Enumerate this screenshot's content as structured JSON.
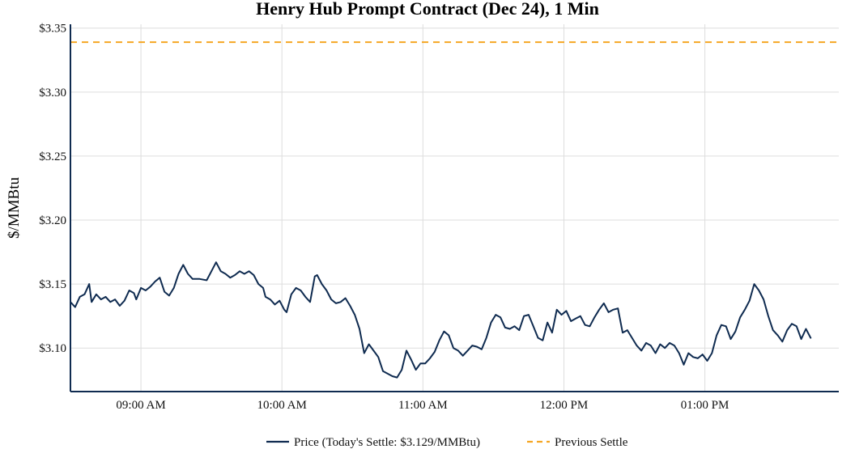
{
  "chart_data": {
    "type": "line",
    "title": "Henry Hub Prompt Contract (Dec 24), 1 Min",
    "xlabel": "",
    "ylabel": "$/MMBtu",
    "xlim": [
      "08:30",
      "13:57"
    ],
    "ylim": [
      3.066,
      3.353
    ],
    "x_ticks": [
      "09:00 AM",
      "10:00 AM",
      "11:00 AM",
      "12:00 PM",
      "01:00 PM"
    ],
    "x_tick_times": [
      "09:00",
      "10:00",
      "11:00",
      "12:00",
      "13:00"
    ],
    "y_ticks": [
      "$3.10",
      "$3.15",
      "$3.20",
      "$3.25",
      "$3.30",
      "$3.35"
    ],
    "y_tick_values": [
      3.1,
      3.15,
      3.2,
      3.25,
      3.3,
      3.35
    ],
    "grid": true,
    "legend_position": "bottom-center",
    "colors": {
      "price": "#0f2b50",
      "previous_settle": "#f5a623"
    },
    "series": [
      {
        "name": "Price (Today's Settle: $3.129/MMBtu)",
        "style": "solid",
        "points": [
          [
            "08:30",
            3.136
          ],
          [
            "08:32",
            3.132
          ],
          [
            "08:34",
            3.14
          ],
          [
            "08:36",
            3.142
          ],
          [
            "08:38",
            3.15
          ],
          [
            "08:39",
            3.136
          ],
          [
            "08:41",
            3.142
          ],
          [
            "08:43",
            3.138
          ],
          [
            "08:45",
            3.14
          ],
          [
            "08:47",
            3.136
          ],
          [
            "08:49",
            3.138
          ],
          [
            "08:51",
            3.133
          ],
          [
            "08:53",
            3.137
          ],
          [
            "08:55",
            3.145
          ],
          [
            "08:57",
            3.143
          ],
          [
            "08:58",
            3.138
          ],
          [
            "09:00",
            3.147
          ],
          [
            "09:02",
            3.145
          ],
          [
            "09:04",
            3.148
          ],
          [
            "09:06",
            3.152
          ],
          [
            "09:08",
            3.155
          ],
          [
            "09:10",
            3.144
          ],
          [
            "09:12",
            3.141
          ],
          [
            "09:14",
            3.147
          ],
          [
            "09:16",
            3.158
          ],
          [
            "09:18",
            3.165
          ],
          [
            "09:20",
            3.158
          ],
          [
            "09:22",
            3.154
          ],
          [
            "09:25",
            3.154
          ],
          [
            "09:28",
            3.153
          ],
          [
            "09:30",
            3.16
          ],
          [
            "09:32",
            3.167
          ],
          [
            "09:34",
            3.16
          ],
          [
            "09:36",
            3.158
          ],
          [
            "09:38",
            3.155
          ],
          [
            "09:40",
            3.157
          ],
          [
            "09:42",
            3.16
          ],
          [
            "09:44",
            3.158
          ],
          [
            "09:46",
            3.16
          ],
          [
            "09:48",
            3.157
          ],
          [
            "09:50",
            3.15
          ],
          [
            "09:52",
            3.147
          ],
          [
            "09:53",
            3.14
          ],
          [
            "09:55",
            3.138
          ],
          [
            "09:57",
            3.134
          ],
          [
            "09:59",
            3.137
          ],
          [
            "10:01",
            3.13
          ],
          [
            "10:02",
            3.128
          ],
          [
            "10:04",
            3.142
          ],
          [
            "10:06",
            3.147
          ],
          [
            "10:08",
            3.145
          ],
          [
            "10:10",
            3.14
          ],
          [
            "10:12",
            3.136
          ],
          [
            "10:14",
            3.156
          ],
          [
            "10:15",
            3.157
          ],
          [
            "10:17",
            3.15
          ],
          [
            "10:19",
            3.145
          ],
          [
            "10:21",
            3.138
          ],
          [
            "10:23",
            3.135
          ],
          [
            "10:25",
            3.136
          ],
          [
            "10:27",
            3.139
          ],
          [
            "10:29",
            3.133
          ],
          [
            "10:31",
            3.126
          ],
          [
            "10:33",
            3.115
          ],
          [
            "10:35",
            3.096
          ],
          [
            "10:37",
            3.103
          ],
          [
            "10:39",
            3.098
          ],
          [
            "10:41",
            3.093
          ],
          [
            "10:43",
            3.082
          ],
          [
            "10:45",
            3.08
          ],
          [
            "10:47",
            3.078
          ],
          [
            "10:49",
            3.077
          ],
          [
            "10:51",
            3.083
          ],
          [
            "10:53",
            3.098
          ],
          [
            "10:55",
            3.091
          ],
          [
            "10:57",
            3.083
          ],
          [
            "10:59",
            3.088
          ],
          [
            "11:01",
            3.088
          ],
          [
            "11:03",
            3.092
          ],
          [
            "11:05",
            3.097
          ],
          [
            "11:07",
            3.106
          ],
          [
            "11:09",
            3.113
          ],
          [
            "11:11",
            3.11
          ],
          [
            "11:13",
            3.1
          ],
          [
            "11:15",
            3.098
          ],
          [
            "11:17",
            3.094
          ],
          [
            "11:19",
            3.098
          ],
          [
            "11:21",
            3.102
          ],
          [
            "11:23",
            3.101
          ],
          [
            "11:25",
            3.099
          ],
          [
            "11:27",
            3.108
          ],
          [
            "11:29",
            3.12
          ],
          [
            "11:31",
            3.126
          ],
          [
            "11:33",
            3.124
          ],
          [
            "11:35",
            3.116
          ],
          [
            "11:37",
            3.115
          ],
          [
            "11:39",
            3.117
          ],
          [
            "11:41",
            3.114
          ],
          [
            "11:43",
            3.125
          ],
          [
            "11:45",
            3.126
          ],
          [
            "11:47",
            3.117
          ],
          [
            "11:49",
            3.108
          ],
          [
            "11:51",
            3.106
          ],
          [
            "11:53",
            3.12
          ],
          [
            "11:55",
            3.112
          ],
          [
            "11:57",
            3.13
          ],
          [
            "11:59",
            3.126
          ],
          [
            "12:01",
            3.129
          ],
          [
            "12:03",
            3.121
          ],
          [
            "12:05",
            3.123
          ],
          [
            "12:07",
            3.125
          ],
          [
            "12:09",
            3.118
          ],
          [
            "12:11",
            3.117
          ],
          [
            "12:13",
            3.124
          ],
          [
            "12:15",
            3.13
          ],
          [
            "12:17",
            3.135
          ],
          [
            "12:19",
            3.128
          ],
          [
            "12:21",
            3.13
          ],
          [
            "12:23",
            3.131
          ],
          [
            "12:25",
            3.112
          ],
          [
            "12:27",
            3.114
          ],
          [
            "12:29",
            3.108
          ],
          [
            "12:31",
            3.102
          ],
          [
            "12:33",
            3.098
          ],
          [
            "12:35",
            3.104
          ],
          [
            "12:37",
            3.102
          ],
          [
            "12:39",
            3.096
          ],
          [
            "12:41",
            3.103
          ],
          [
            "12:43",
            3.1
          ],
          [
            "12:45",
            3.104
          ],
          [
            "12:47",
            3.102
          ],
          [
            "12:49",
            3.096
          ],
          [
            "12:51",
            3.087
          ],
          [
            "12:53",
            3.096
          ],
          [
            "12:55",
            3.093
          ],
          [
            "12:57",
            3.092
          ],
          [
            "12:59",
            3.095
          ],
          [
            "13:01",
            3.09
          ],
          [
            "13:03",
            3.096
          ],
          [
            "13:05",
            3.11
          ],
          [
            "13:07",
            3.118
          ],
          [
            "13:09",
            3.117
          ],
          [
            "13:11",
            3.107
          ],
          [
            "13:13",
            3.113
          ],
          [
            "13:15",
            3.124
          ],
          [
            "13:17",
            3.13
          ],
          [
            "13:19",
            3.137
          ],
          [
            "13:21",
            3.15
          ],
          [
            "13:23",
            3.145
          ],
          [
            "13:25",
            3.138
          ],
          [
            "13:27",
            3.125
          ],
          [
            "13:29",
            3.114
          ],
          [
            "13:31",
            3.11
          ],
          [
            "13:33",
            3.105
          ],
          [
            "13:35",
            3.114
          ],
          [
            "13:37",
            3.119
          ],
          [
            "13:39",
            3.117
          ],
          [
            "13:41",
            3.107
          ],
          [
            "13:43",
            3.115
          ],
          [
            "13:45",
            3.108
          ]
        ]
      },
      {
        "name": "Previous Settle",
        "style": "dashed",
        "value": 3.339
      }
    ]
  }
}
